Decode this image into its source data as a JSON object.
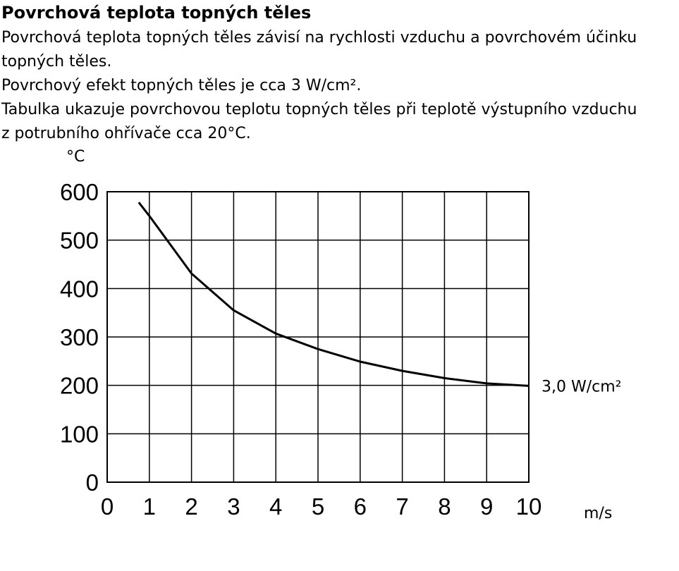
{
  "header": {
    "title": "Povrchová teplota topných těles"
  },
  "lines": [
    "Povrchová teplota topných těles závisí na rychlosti vzduchu a povrchovém účinku",
    "topných těles.",
    "Povrchový efekt topných těles je cca 3 W/cm².",
    "Tabulka ukazuje povrchovou teplotu topných těles při teplotě výstupního vzduchu",
    "z potrubního ohřívače cca 20°C."
  ],
  "chart_data": {
    "type": "line",
    "y_label": "°C",
    "x_label": "m/s",
    "x": [
      0.75,
      1,
      2,
      3,
      4,
      5,
      6,
      7,
      8,
      9,
      10
    ],
    "series": [
      {
        "name": "3,0 W/cm²",
        "color": "#000000",
        "values": [
          578,
          550,
          431,
          355,
          307,
          275,
          249,
          230,
          215,
          204,
          199
        ]
      }
    ],
    "xlim": [
      0,
      10
    ],
    "xticks": [
      0,
      1,
      2,
      3,
      4,
      5,
      6,
      7,
      8,
      9,
      10
    ],
    "ylim": [
      0,
      600
    ],
    "yticks": [
      0,
      100,
      200,
      300,
      400,
      500,
      600
    ],
    "grid": true
  }
}
